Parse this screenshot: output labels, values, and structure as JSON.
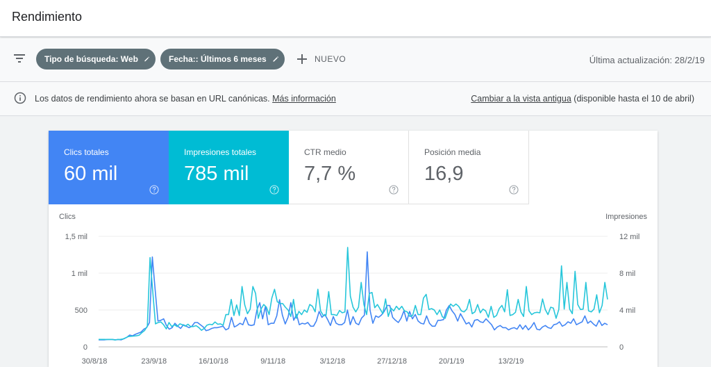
{
  "header": {
    "title": "Rendimiento"
  },
  "filters": {
    "chips": [
      {
        "label": "Tipo de búsqueda: Web",
        "icon": "pencil-icon"
      },
      {
        "label": "Fecha:: Últimos 6 meses",
        "icon": "pencil-icon"
      }
    ],
    "new_label": "NUEVO",
    "last_update": "Última actualización: 28/2/19"
  },
  "notice": {
    "text": "Los datos de rendimiento ahora se basan en URL canónicas.",
    "link": "Más información",
    "switch_link": "Cambiar a la vista antigua",
    "switch_note": "(disponible hasta el 10 de abril)"
  },
  "metrics": [
    {
      "label": "Clics totales",
      "value": "60 mil",
      "selected": true,
      "color": "#4285f4"
    },
    {
      "label": "Impresiones totales",
      "value": "785 mil",
      "selected": true,
      "color": "#00bcd4"
    },
    {
      "label": "CTR medio",
      "value": "7,7 %",
      "selected": false
    },
    {
      "label": "Posición media",
      "value": "16,9",
      "selected": false
    }
  ],
  "chart_data": {
    "type": "line",
    "left_axis": {
      "label": "Clics",
      "ticks": [
        "1,5 mil",
        "1 mil",
        "500",
        "0"
      ],
      "range": [
        0,
        1500
      ]
    },
    "right_axis": {
      "label": "Impresiones",
      "ticks": [
        "12 mil",
        "8 mil",
        "4 mil",
        "0"
      ],
      "range": [
        0,
        12000
      ]
    },
    "x_tick_labels": [
      "30/8/18",
      "23/9/18",
      "16/10/18",
      "9/11/18",
      "3/12/18",
      "27/12/18",
      "20/1/19",
      "13/2/19"
    ],
    "series": [
      {
        "axis": "left",
        "color": "#4285f4",
        "values": [
          95,
          95,
          95,
          100,
          100,
          100,
          95,
          100,
          95,
          110,
          130,
          160,
          150,
          170,
          185,
          200,
          240,
          260,
          330,
          1220,
          780,
          350,
          360,
          380,
          290,
          240,
          260,
          320,
          280,
          250,
          300,
          280,
          260,
          280,
          330,
          330,
          300,
          270,
          220,
          230,
          250,
          260,
          260,
          270,
          280,
          230,
          250,
          400,
          270,
          290,
          320,
          300,
          400,
          300,
          290,
          300,
          500,
          600,
          380,
          550,
          300,
          320,
          320,
          420,
          640,
          430,
          310,
          400,
          600,
          360,
          440,
          300,
          320,
          310,
          330,
          280,
          280,
          350,
          480,
          400,
          440,
          370,
          290,
          410,
          320,
          300,
          300,
          330,
          500,
          300,
          410,
          320,
          300,
          390,
          430,
          1290,
          500,
          320,
          420,
          400,
          430,
          480,
          560,
          560,
          400,
          360,
          330,
          390,
          490,
          350,
          480,
          380,
          440,
          350,
          320,
          310,
          420,
          320,
          280,
          280,
          360,
          360,
          370,
          500,
          560,
          490,
          440,
          350,
          450,
          380,
          310,
          330,
          270,
          360,
          370,
          340,
          330,
          380,
          340,
          300,
          230,
          270,
          290,
          260,
          260,
          230,
          250,
          260,
          240,
          300,
          240,
          290,
          230,
          270,
          330,
          240,
          230,
          270,
          290,
          260,
          250,
          300,
          310,
          340,
          280,
          300,
          340,
          320,
          380,
          300,
          320,
          340,
          420,
          320,
          350,
          310,
          280,
          360,
          290,
          320,
          300
        ]
      },
      {
        "axis": "right",
        "color": "#26c6da",
        "values": [
          810,
          810,
          810,
          800,
          810,
          810,
          750,
          800,
          810,
          850,
          980,
          1120,
          1150,
          1170,
          1200,
          1270,
          1550,
          1770,
          2250,
          9700,
          6000,
          2500,
          2640,
          2700,
          2400,
          1950,
          2640,
          2200,
          2400,
          2200,
          2500,
          2400,
          2250,
          2450,
          2200,
          2200,
          2300,
          2100,
          1800,
          2000,
          2350,
          2450,
          2400,
          2700,
          2450,
          2500,
          2350,
          3500,
          3500,
          5150,
          3400,
          4550,
          3400,
          6550,
          4550,
          3600,
          4100,
          6550,
          5800,
          3100,
          4100,
          4600,
          4300,
          3500,
          5300,
          6250,
          4900,
          4700,
          4700,
          4300,
          4000,
          3300,
          5150,
          3100,
          3850,
          3500,
          4000,
          3750,
          4600,
          4400,
          3800,
          6250,
          3900,
          3400,
          3400,
          6000,
          3500,
          3500,
          3400,
          3950,
          3700,
          3800,
          10800,
          5500,
          4300,
          3800,
          4300,
          7000,
          4600,
          3500,
          5800,
          5900,
          4250,
          4600,
          4100,
          3600,
          5200,
          3300,
          4200,
          3900,
          4400,
          4050,
          4400,
          3900,
          3800,
          3300,
          3400,
          4500,
          3500,
          3500,
          5300,
          5700,
          4050,
          4150,
          4000,
          3500,
          4000,
          3250,
          3100,
          3950,
          4650,
          4400,
          4650,
          4400,
          3900,
          3800,
          4100,
          5150,
          3600,
          3800,
          4600,
          3700,
          4100,
          3900,
          3200,
          4400,
          3200,
          3400,
          4150,
          4500,
          3800,
          6200,
          3400,
          3500,
          3750,
          5150,
          3800,
          3300,
          6550,
          3900,
          3500,
          3700,
          3750,
          3700,
          5200,
          4050,
          3500,
          4300,
          4200,
          3100,
          4050,
          8800,
          4100,
          7000,
          4100,
          3600,
          8200,
          4600,
          4050,
          4100,
          7000,
          3900,
          3800,
          4100,
          5650,
          3700,
          4500,
          7000,
          5150
        ]
      }
    ]
  }
}
